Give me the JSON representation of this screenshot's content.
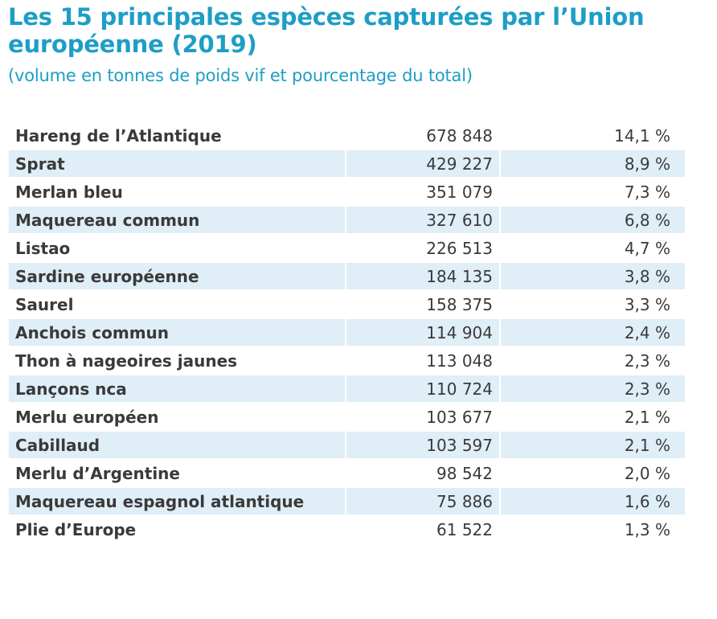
{
  "header": {
    "title": "Les 15 principales espèces capturées par l’Union européenne (2019)",
    "subtitle": "(volume en tonnes de poids vif et pourcentage du total)"
  },
  "table": {
    "rows": [
      {
        "species": "Hareng de l’Atlantique",
        "tonnes": "678 848",
        "percent": "14,1 %"
      },
      {
        "species": "Sprat",
        "tonnes": "429 227",
        "percent": "8,9 %"
      },
      {
        "species": "Merlan bleu",
        "tonnes": "351 079",
        "percent": "7,3 %"
      },
      {
        "species": "Maquereau commun",
        "tonnes": "327 610",
        "percent": "6,8 %"
      },
      {
        "species": "Listao",
        "tonnes": "226 513",
        "percent": "4,7 %"
      },
      {
        "species": "Sardine européenne",
        "tonnes": "184 135",
        "percent": "3,8 %"
      },
      {
        "species": "Saurel",
        "tonnes": "158 375",
        "percent": "3,3 %"
      },
      {
        "species": "Anchois commun",
        "tonnes": "114 904",
        "percent": "2,4 %"
      },
      {
        "species": "Thon à nageoires jaunes",
        "tonnes": "113 048",
        "percent": "2,3 %"
      },
      {
        "species": "Lançons nca",
        "tonnes": "110 724",
        "percent": "2,3 %"
      },
      {
        "species": "Merlu européen",
        "tonnes": "103 677",
        "percent": "2,1 %"
      },
      {
        "species": "Cabillaud",
        "tonnes": "103 597",
        "percent": "2,1 %"
      },
      {
        "species": "Merlu d’Argentine",
        "tonnes": "98 542",
        "percent": "2,0 %"
      },
      {
        "species": "Maquereau espagnol atlantique",
        "tonnes": "75 886",
        "percent": "1,6 %"
      },
      {
        "species": "Plie d’Europe",
        "tonnes": "61 522",
        "percent": "1,3 %"
      }
    ]
  },
  "colors": {
    "title": "#1d9ec6",
    "row_stripe": "#dfeef7",
    "text": "#3a3a3a"
  }
}
